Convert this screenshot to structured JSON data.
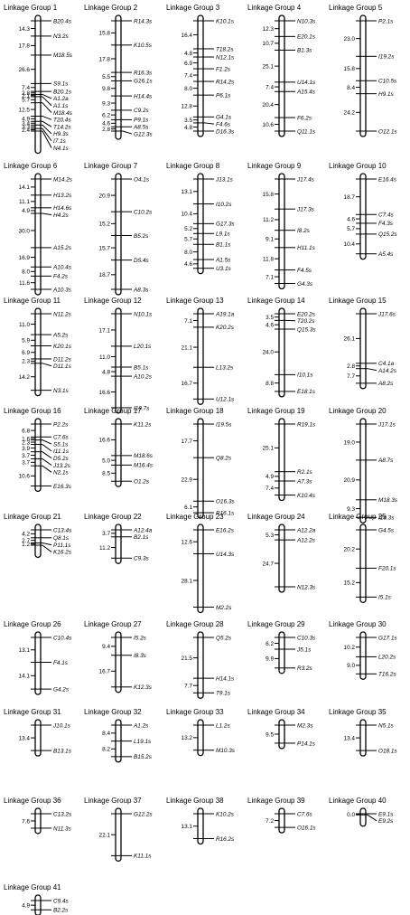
{
  "figure": {
    "groups": [
      {
        "title": "Linkage Group 1",
        "markers": [
          {
            "d": "14.3",
            "m": "B20.4s"
          },
          {
            "d": "17.8",
            "m": "N3.2s"
          },
          {
            "d": "26.6",
            "m": "M18.5s"
          },
          {
            "d": "7.4",
            "m": "S9.1s"
          },
          {
            "d": "2.8",
            "m": "B20.1s"
          },
          {
            "d": "2.1",
            "m": "A1.2a"
          },
          {
            "d": "5.7",
            "m": "A1.1s"
          },
          {
            "d": "12.5",
            "m": "M18.4s"
          },
          {
            "d": "4.9",
            "m": "T20.4s"
          },
          {
            "d": "3.4",
            "m": "T14.2s"
          },
          {
            "d": "3.3",
            "m": "H9.3s"
          },
          {
            "d": "2.4",
            "m": "I7.1s"
          },
          {
            "d": "6.0",
            "m": "N4.1s"
          }
        ]
      },
      {
        "title": "Linkage Group 2",
        "markers": [
          {
            "d": "15.8",
            "m": "R14.3s"
          },
          {
            "d": "17.8",
            "m": "K10.5s"
          },
          {
            "d": "5.5",
            "m": "R16.3s"
          },
          {
            "d": "9.8",
            "m": "G16.1s"
          },
          {
            "d": "9.3",
            "m": "H14.4s"
          },
          {
            "d": "6.2",
            "m": "C9.2s"
          },
          {
            "d": "4.6",
            "m": "P9.1s"
          },
          {
            "d": "2.8",
            "m": "A8.5s"
          },
          {
            "d": "",
            "m": "G12.3s"
          }
        ]
      },
      {
        "title": "Linkage Group 3",
        "markers": [
          {
            "d": "16.4",
            "m": "K10.1s"
          },
          {
            "d": "4.8",
            "m": "T18.2s"
          },
          {
            "d": "6.9",
            "m": "N12.1s"
          },
          {
            "d": "7.4",
            "m": "F1.2s"
          },
          {
            "d": "8.0",
            "m": "R14.2s"
          },
          {
            "d": "12.8",
            "m": "P6.1s"
          },
          {
            "d": "3.5",
            "m": "G4.1s"
          },
          {
            "d": "4.8",
            "m": "F4.6s"
          },
          {
            "d": "",
            "m": "D16.3s"
          }
        ]
      },
      {
        "title": "Linkage Group 4",
        "markers": [
          {
            "d": "12.3",
            "m": "N10.3s"
          },
          {
            "d": "10.7",
            "m": "E20.1s"
          },
          {
            "d": "25.1",
            "m": "B1.3s"
          },
          {
            "d": "7.4",
            "m": "U14.1s"
          },
          {
            "d": "20.4",
            "m": "A15.4s"
          },
          {
            "d": "10.6",
            "m": "F6.2s"
          },
          {
            "d": "",
            "m": "Q11.1s"
          }
        ]
      },
      {
        "title": "Linkage Group 5",
        "markers": [
          {
            "d": "23.0",
            "m": "P2.1s"
          },
          {
            "d": "15.8",
            "m": "I19.2s"
          },
          {
            "d": "8.4",
            "m": "C10.5s"
          },
          {
            "d": "24.2",
            "m": "H9.1s"
          },
          {
            "d": "",
            "m": "O12.1s"
          }
        ]
      },
      {
        "title": "Linkage Group 6",
        "markers": [
          {
            "d": "14.1",
            "m": "M14.2s"
          },
          {
            "d": "11.1",
            "m": "H13.2s"
          },
          {
            "d": "4.9",
            "m": "H14.6s"
          },
          {
            "d": "30.0",
            "m": "H4.2s"
          },
          {
            "d": "16.9",
            "m": "A15.2s"
          },
          {
            "d": "8.0",
            "m": "A10.4s"
          },
          {
            "d": "11.6",
            "m": "F4.2s"
          },
          {
            "d": "",
            "m": "A10.3s"
          }
        ]
      },
      {
        "title": "Linkage Group 7",
        "markers": [
          {
            "d": "20.9",
            "m": "O4.1s"
          },
          {
            "d": "15.2",
            "m": "C10.2s"
          },
          {
            "d": "15.7",
            "m": "B5.2s"
          },
          {
            "d": "18.7",
            "m": "D5.4s"
          },
          {
            "d": "",
            "m": "A8.3s"
          }
        ]
      },
      {
        "title": "Linkage Group 8",
        "markers": [
          {
            "d": "13.1",
            "m": "J13.1s"
          },
          {
            "d": "10.4",
            "m": "I10.2s"
          },
          {
            "d": "5.2",
            "m": "G17.3s"
          },
          {
            "d": "5.7",
            "m": "L9.1s"
          },
          {
            "d": "8.0",
            "m": "B1.1s"
          },
          {
            "d": "4.6",
            "m": "A1.5s"
          },
          {
            "d": "12.8",
            "m": "U3.1s"
          }
        ]
      },
      {
        "title": "Linkage Group 9",
        "markers": [
          {
            "d": "15.8",
            "m": "J17.4s"
          },
          {
            "d": "11.2",
            "m": "J17.3s"
          },
          {
            "d": "9.1",
            "m": "I8.2s"
          },
          {
            "d": "11.8",
            "m": "H11.1s"
          },
          {
            "d": "7.1",
            "m": "F4.5s"
          },
          {
            "d": "",
            "m": "G4.3s"
          }
        ]
      },
      {
        "title": "Linkage Group 10",
        "markers": [
          {
            "d": "18.7",
            "m": "E16.4s"
          },
          {
            "d": "4.6",
            "m": "C7.4s"
          },
          {
            "d": "5.7",
            "m": "F4.3s"
          },
          {
            "d": "10.4",
            "m": "Q15.2s"
          },
          {
            "d": "",
            "m": "A5.4s"
          }
        ]
      },
      {
        "title": "Linkage Group 11",
        "markers": [
          {
            "d": "11.0",
            "m": "N11.2s"
          },
          {
            "d": "5.9",
            "m": "A5.2s"
          },
          {
            "d": "6.9",
            "m": "K20.1s"
          },
          {
            "d": "2.3",
            "m": "D11.2s"
          },
          {
            "d": "14.2",
            "m": "D11.1s"
          },
          {
            "d": "",
            "m": "N3.1s"
          }
        ]
      },
      {
        "title": "Linkage Group 12",
        "markers": [
          {
            "d": "17.1",
            "m": "N10.1s"
          },
          {
            "d": "11.0",
            "m": "L20.1s"
          },
          {
            "d": "4.8",
            "m": "B5.1s"
          },
          {
            "d": "16.6",
            "m": "A10.2s"
          },
          {
            "d": "",
            "m": "I19.7s"
          }
        ]
      },
      {
        "title": "Linkage Group 13",
        "markers": [
          {
            "d": "7.1",
            "m": "A19.1a"
          },
          {
            "d": "21.1",
            "m": "K20.2s"
          },
          {
            "d": "16.7",
            "m": "L13.2s"
          },
          {
            "d": "",
            "m": "U12.1s"
          }
        ]
      },
      {
        "title": "Linkage Group 14",
        "markers": [
          {
            "d": "3.5",
            "m": "E20.2s"
          },
          {
            "d": "4.6",
            "m": "T20.2s"
          },
          {
            "d": "24.0",
            "m": "Q15.3s"
          },
          {
            "d": "8.8",
            "m": "I10.1s"
          },
          {
            "d": "",
            "m": "E18.1s"
          }
        ]
      },
      {
        "title": "Linkage Group 15",
        "markers": [
          {
            "d": "26.1",
            "m": "J17.6s"
          },
          {
            "d": "2.8",
            "m": "C4.1a"
          },
          {
            "d": "7.7",
            "m": "A14.2s"
          },
          {
            "d": "",
            "m": "A8.2s"
          }
        ]
      },
      {
        "title": "Linkage Group 16",
        "markers": [
          {
            "d": "6.8",
            "m": "P2.2s"
          },
          {
            "d": "1.6",
            "m": "C7.6s"
          },
          {
            "d": "2.3",
            "m": "S5.1s"
          },
          {
            "d": "3.9",
            "m": "I11.1s"
          },
          {
            "d": "3.7",
            "m": "D5.2s"
          },
          {
            "d": "3.7",
            "m": "J13.2s"
          },
          {
            "d": "10.6",
            "m": "N2.1s"
          },
          {
            "d": "14.0",
            "m": "E16.3s"
          }
        ]
      },
      {
        "title": "Linkage Group 17",
        "markers": [
          {
            "d": "16.6",
            "m": "K11.2s"
          },
          {
            "d": "5.0",
            "m": "M18.6s"
          },
          {
            "d": "8.5",
            "m": "M16.4s"
          },
          {
            "d": "",
            "m": "O1.2s"
          }
        ]
      },
      {
        "title": "Linkage Group 18",
        "markers": [
          {
            "d": "17.7",
            "m": "I19.5s"
          },
          {
            "d": "22.9",
            "m": "Q8.2s"
          },
          {
            "d": "6.1",
            "m": "O16.3s"
          },
          {
            "d": "",
            "m": "R16.1s"
          }
        ]
      },
      {
        "title": "Linkage Group 19",
        "markers": [
          {
            "d": "25.1",
            "m": "R19.1s"
          },
          {
            "d": "4.9",
            "m": "R2.1s"
          },
          {
            "d": "7.4",
            "m": "A7.3s"
          },
          {
            "d": "",
            "m": "K10.4s"
          }
        ]
      },
      {
        "title": "Linkage Group 20",
        "markers": [
          {
            "d": "19.0",
            "m": "J17.1s"
          },
          {
            "d": "20.9",
            "m": "A8.7s"
          },
          {
            "d": "9.3",
            "m": "M18.3s"
          },
          {
            "d": "",
            "m": "I19.3s"
          }
        ]
      },
      {
        "title": "Linkage Group 21",
        "markers": [
          {
            "d": "4.2",
            "m": "C13.4s"
          },
          {
            "d": "2.7",
            "m": "Q8.1s"
          },
          {
            "d": "1.2",
            "m": "P11.1s"
          },
          {
            "d": "",
            "m": "K16.2s"
          }
        ]
      },
      {
        "title": "Linkage Group 22",
        "markers": [
          {
            "d": "3.7",
            "m": "A12.4a"
          },
          {
            "d": "11.2",
            "m": "B2.1s"
          },
          {
            "d": "",
            "m": "C9.3s"
          }
        ]
      },
      {
        "title": "Linkage Group 23",
        "markers": [
          {
            "d": "12.6",
            "m": "E16.2s"
          },
          {
            "d": "28.1",
            "m": "U14.3s"
          },
          {
            "d": "",
            "m": "M2.2s"
          }
        ]
      },
      {
        "title": "Linkage Group 24",
        "markers": [
          {
            "d": "5.3",
            "m": "A12.2a"
          },
          {
            "d": "24.7",
            "m": "A12.2s"
          },
          {
            "d": "",
            "m": "N12.3s"
          }
        ]
      },
      {
        "title": "Linkage Group 25",
        "markers": [
          {
            "d": "20.2",
            "m": "G4.5s"
          },
          {
            "d": "15.2",
            "m": "F20.1s"
          },
          {
            "d": "",
            "m": "I5.1s"
          }
        ]
      },
      {
        "title": "Linkage Group 26",
        "markers": [
          {
            "d": "13.1",
            "m": "C10.4s"
          },
          {
            "d": "14.1",
            "m": "F4.1s"
          },
          {
            "d": "",
            "m": "G4.2s"
          }
        ]
      },
      {
        "title": "Linkage Group 27",
        "markers": [
          {
            "d": "9.4",
            "m": "I5.2s"
          },
          {
            "d": "16.7",
            "m": "I8.3s"
          },
          {
            "d": "",
            "m": "K12.3s"
          }
        ]
      },
      {
        "title": "Linkage Group 28",
        "markers": [
          {
            "d": "21.5",
            "m": "Q5.2s"
          },
          {
            "d": "7.7",
            "m": "H14.1s"
          },
          {
            "d": "",
            "m": "T9.1s"
          }
        ]
      },
      {
        "title": "Linkage Group 29",
        "markers": [
          {
            "d": "6.2",
            "m": "C10.3s"
          },
          {
            "d": "9.9",
            "m": "J5.1s"
          },
          {
            "d": "",
            "m": "R3.2s"
          }
        ]
      },
      {
        "title": "Linkage Group 30",
        "markers": [
          {
            "d": "10.2",
            "m": "G17.1s"
          },
          {
            "d": "9.0",
            "m": "L20.2s"
          },
          {
            "d": "",
            "m": "T16.2s"
          }
        ]
      },
      {
        "title": "Linkage Group 31",
        "markers": [
          {
            "d": "13.4",
            "m": "J10.1s"
          },
          {
            "d": "",
            "m": "B13.1s"
          }
        ]
      },
      {
        "title": "Linkage Group 32",
        "markers": [
          {
            "d": "8.4",
            "m": "A1.2s"
          },
          {
            "d": "8.2",
            "m": "L19.1s"
          },
          {
            "d": "",
            "m": "B15.2s"
          }
        ]
      },
      {
        "title": "Linkage Group 33",
        "markers": [
          {
            "d": "13.2",
            "m": "L1.2s"
          },
          {
            "d": "",
            "m": "M10.3s"
          }
        ]
      },
      {
        "title": "Linkage Group 34",
        "markers": [
          {
            "d": "9.5",
            "m": "M2.3s"
          },
          {
            "d": "",
            "m": "P14.1s"
          }
        ]
      },
      {
        "title": "Linkage Group 35",
        "markers": [
          {
            "d": "13.4",
            "m": "N5.1s"
          },
          {
            "d": "",
            "m": "O18.1s"
          }
        ]
      },
      {
        "title": "Linkage Group 36",
        "markers": [
          {
            "d": "7.6",
            "m": "C13.2s"
          },
          {
            "d": "",
            "m": "N11.3s"
          }
        ]
      },
      {
        "title": "Linkage Group 37",
        "markers": [
          {
            "d": "22.1",
            "m": "G12.2s"
          },
          {
            "d": "",
            "m": "K11.1s"
          }
        ]
      },
      {
        "title": "Linkage Group 38",
        "markers": [
          {
            "d": "13.1",
            "m": "K10.2s"
          },
          {
            "d": "",
            "m": "R16.2s"
          }
        ]
      },
      {
        "title": "Linkage Group 39",
        "markers": [
          {
            "d": "7.2",
            "m": "C7.6s"
          },
          {
            "d": "",
            "m": "O16.1s"
          }
        ]
      },
      {
        "title": "Linkage Group 40",
        "markers": [
          {
            "d": "0.0",
            "m": "E9.1s"
          },
          {
            "d": "",
            "m": "E9.2s"
          }
        ]
      },
      {
        "title": "Linkage Group 41",
        "markers": [
          {
            "d": "4.9",
            "m": "C9.4s"
          },
          {
            "d": "",
            "m": "B2.2s"
          }
        ]
      }
    ]
  }
}
